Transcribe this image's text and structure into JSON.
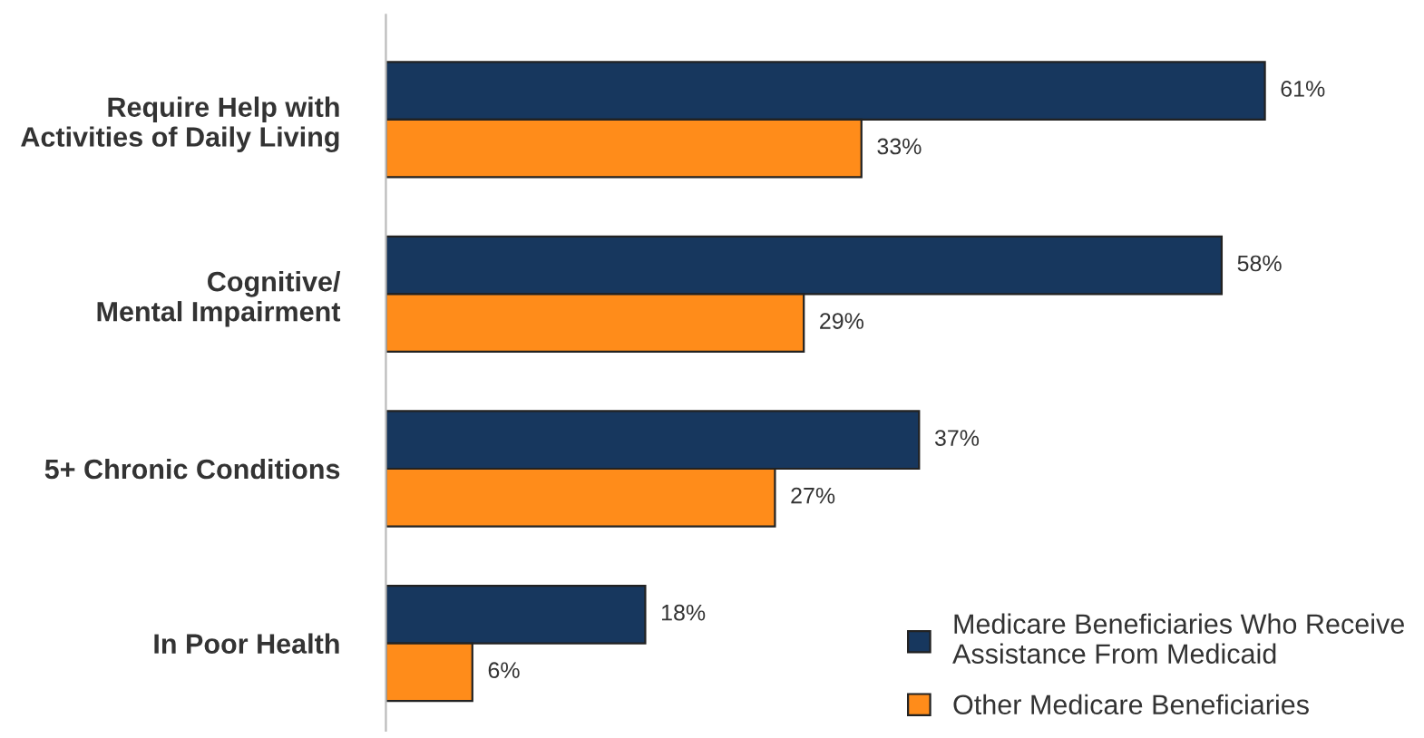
{
  "chart_data": {
    "type": "bar",
    "orientation": "horizontal",
    "categories": [
      "Require Help with\nActivities of Daily Living",
      "Cognitive/\nMental Impairment",
      "5+ Chronic Conditions",
      "In Poor Health"
    ],
    "series": [
      {
        "name": "Medicare Beneficiaries Who Receive\nAssistance From Medicaid",
        "color": "#17375e",
        "values": [
          61,
          58,
          37,
          18
        ],
        "value_labels": [
          "61%",
          "58%",
          "37%",
          "18%"
        ]
      },
      {
        "name": "Other Medicare Beneficiaries",
        "color": "#ff8c1a",
        "values": [
          33,
          29,
          27,
          6
        ],
        "value_labels": [
          "33%",
          "29%",
          "27%",
          "6%"
        ]
      }
    ],
    "legend": "bottom right",
    "grid": false
  }
}
